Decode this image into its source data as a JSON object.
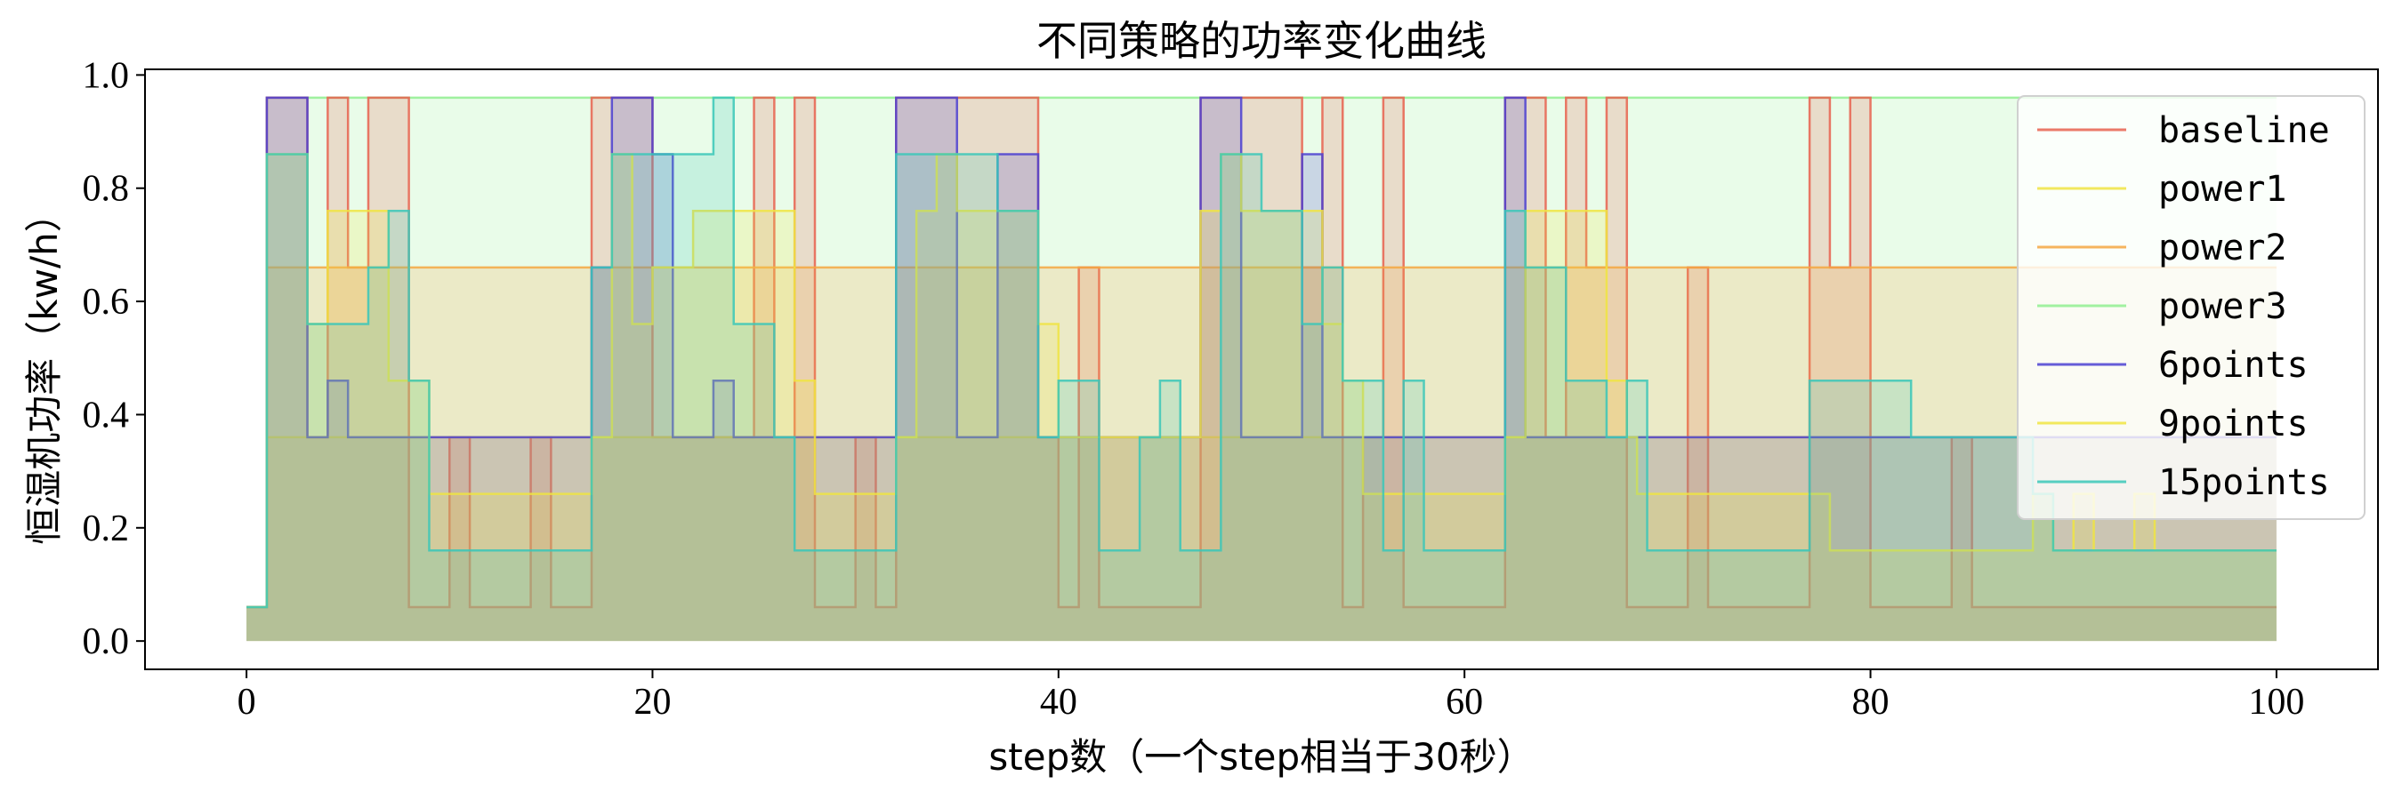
{
  "chart_data": {
    "type": "area",
    "title": "不同策略的功率变化曲线",
    "xlabel": "step数（一个step相当于30秒）",
    "ylabel": "恒湿机功率（kw/h）",
    "xlim": [
      -5,
      105
    ],
    "ylim": [
      -0.05,
      1.01
    ],
    "xticks": [
      0,
      20,
      40,
      60,
      80,
      100
    ],
    "yticks": [
      0.0,
      0.2,
      0.4,
      0.6,
      0.8,
      1.0
    ],
    "xtick_labels": [
      "0",
      "20",
      "40",
      "60",
      "80",
      "100"
    ],
    "ytick_labels": [
      "0.0",
      "0.2",
      "0.4",
      "0.6",
      "0.8",
      "1.0"
    ],
    "step": "post",
    "legend_position": "upper-right",
    "series": [
      {
        "name": "power3",
        "color": "#90ee90",
        "points": [
          [
            0,
            0.06
          ],
          [
            1,
            0.96
          ],
          [
            100,
            0.96
          ]
        ]
      },
      {
        "name": "baseline",
        "color": "#e8614f",
        "points": [
          [
            0,
            0.06
          ],
          [
            1,
            0.96
          ],
          [
            3,
            0.36
          ],
          [
            4,
            0.96
          ],
          [
            5,
            0.66
          ],
          [
            6,
            0.96
          ],
          [
            8,
            0.06
          ],
          [
            10,
            0.36
          ],
          [
            11,
            0.06
          ],
          [
            14,
            0.36
          ],
          [
            15,
            0.06
          ],
          [
            17,
            0.96
          ],
          [
            20,
            0.36
          ],
          [
            25,
            0.96
          ],
          [
            26,
            0.36
          ],
          [
            27,
            0.96
          ],
          [
            28,
            0.06
          ],
          [
            30,
            0.36
          ],
          [
            31,
            0.06
          ],
          [
            32,
            0.96
          ],
          [
            39,
            0.36
          ],
          [
            40,
            0.06
          ],
          [
            41,
            0.66
          ],
          [
            42,
            0.06
          ],
          [
            47,
            0.96
          ],
          [
            52,
            0.66
          ],
          [
            53,
            0.96
          ],
          [
            54,
            0.06
          ],
          [
            55,
            0.36
          ],
          [
            56,
            0.96
          ],
          [
            57,
            0.06
          ],
          [
            62,
            0.96
          ],
          [
            64,
            0.36
          ],
          [
            65,
            0.96
          ],
          [
            66,
            0.66
          ],
          [
            67,
            0.96
          ],
          [
            68,
            0.06
          ],
          [
            71,
            0.66
          ],
          [
            72,
            0.06
          ],
          [
            77,
            0.96
          ],
          [
            78,
            0.66
          ],
          [
            79,
            0.96
          ],
          [
            80,
            0.06
          ],
          [
            84,
            0.36
          ],
          [
            85,
            0.06
          ],
          [
            100,
            0.06
          ]
        ]
      },
      {
        "name": "power1",
        "color": "#f0e442",
        "points": [
          [
            0,
            0.06
          ],
          [
            1,
            0.36
          ],
          [
            100,
            0.36
          ]
        ]
      },
      {
        "name": "power2",
        "color": "#f5a742",
        "points": [
          [
            0,
            0.06
          ],
          [
            1,
            0.66
          ],
          [
            100,
            0.66
          ]
        ]
      },
      {
        "name": "6points",
        "color": "#4b3fd1",
        "points": [
          [
            0,
            0.06
          ],
          [
            1,
            0.96
          ],
          [
            3,
            0.36
          ],
          [
            4,
            0.46
          ],
          [
            5,
            0.36
          ],
          [
            17,
            0.66
          ],
          [
            18,
            0.96
          ],
          [
            20,
            0.86
          ],
          [
            21,
            0.36
          ],
          [
            23,
            0.46
          ],
          [
            24,
            0.36
          ],
          [
            32,
            0.96
          ],
          [
            35,
            0.36
          ],
          [
            37,
            0.86
          ],
          [
            39,
            0.36
          ],
          [
            47,
            0.96
          ],
          [
            49,
            0.36
          ],
          [
            52,
            0.86
          ],
          [
            53,
            0.36
          ],
          [
            62,
            0.96
          ],
          [
            63,
            0.36
          ],
          [
            100,
            0.36
          ]
        ]
      },
      {
        "name": "9points",
        "color": "#f0e442",
        "points": [
          [
            0,
            0.06
          ],
          [
            1,
            0.86
          ],
          [
            3,
            0.56
          ],
          [
            4,
            0.76
          ],
          [
            7,
            0.46
          ],
          [
            9,
            0.26
          ],
          [
            17,
            0.36
          ],
          [
            18,
            0.86
          ],
          [
            19,
            0.56
          ],
          [
            20,
            0.66
          ],
          [
            22,
            0.76
          ],
          [
            27,
            0.46
          ],
          [
            28,
            0.26
          ],
          [
            32,
            0.36
          ],
          [
            33,
            0.76
          ],
          [
            34,
            0.86
          ],
          [
            35,
            0.76
          ],
          [
            39,
            0.56
          ],
          [
            40,
            0.36
          ],
          [
            47,
            0.76
          ],
          [
            48,
            0.86
          ],
          [
            49,
            0.76
          ],
          [
            53,
            0.56
          ],
          [
            54,
            0.46
          ],
          [
            55,
            0.26
          ],
          [
            62,
            0.36
          ],
          [
            63,
            0.76
          ],
          [
            67,
            0.46
          ],
          [
            68,
            0.36
          ],
          [
            68.5,
            0.26
          ],
          [
            78,
            0.16
          ],
          [
            88,
            0.26
          ],
          [
            89,
            0.16
          ],
          [
            90,
            0.26
          ],
          [
            91,
            0.16
          ],
          [
            93,
            0.26
          ],
          [
            94,
            0.16
          ],
          [
            100,
            0.16
          ]
        ]
      },
      {
        "name": "15points",
        "color": "#3ac7b8",
        "points": [
          [
            0,
            0.06
          ],
          [
            1,
            0.86
          ],
          [
            3,
            0.56
          ],
          [
            6,
            0.66
          ],
          [
            7,
            0.76
          ],
          [
            8,
            0.46
          ],
          [
            9,
            0.16
          ],
          [
            17,
            0.66
          ],
          [
            18,
            0.86
          ],
          [
            23,
            0.96
          ],
          [
            24,
            0.56
          ],
          [
            26,
            0.36
          ],
          [
            27,
            0.16
          ],
          [
            32,
            0.86
          ],
          [
            37,
            0.76
          ],
          [
            39,
            0.36
          ],
          [
            40,
            0.46
          ],
          [
            42,
            0.16
          ],
          [
            44,
            0.36
          ],
          [
            45,
            0.46
          ],
          [
            46,
            0.16
          ],
          [
            48,
            0.86
          ],
          [
            50,
            0.76
          ],
          [
            52,
            0.56
          ],
          [
            53,
            0.66
          ],
          [
            54,
            0.46
          ],
          [
            56,
            0.16
          ],
          [
            57,
            0.46
          ],
          [
            58,
            0.16
          ],
          [
            62,
            0.76
          ],
          [
            63,
            0.66
          ],
          [
            65,
            0.46
          ],
          [
            67,
            0.36
          ],
          [
            68,
            0.46
          ],
          [
            69,
            0.16
          ],
          [
            77,
            0.46
          ],
          [
            82,
            0.36
          ],
          [
            88,
            0.26
          ],
          [
            89,
            0.16
          ],
          [
            100,
            0.16
          ]
        ]
      }
    ],
    "legend_order": [
      "baseline",
      "power1",
      "power2",
      "power3",
      "6points",
      "9points",
      "15points"
    ]
  }
}
